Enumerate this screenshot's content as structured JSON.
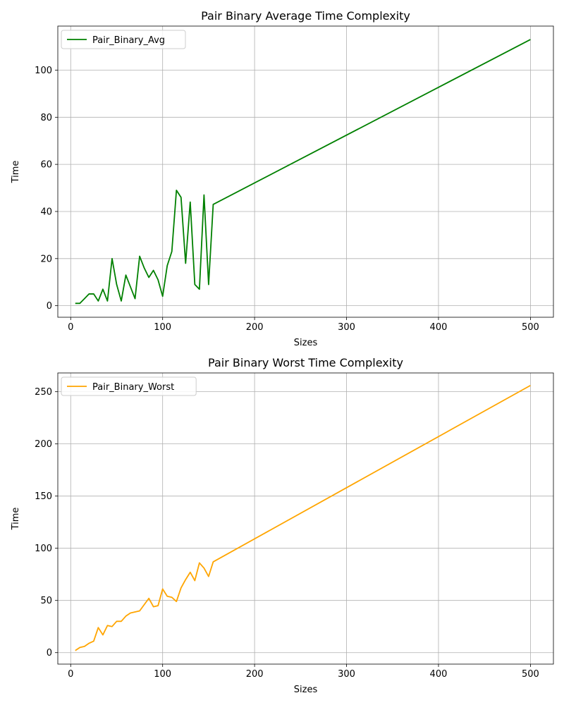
{
  "chart_data": [
    {
      "type": "line",
      "title": "Pair Binary Average Time Complexity",
      "xlabel": "Sizes",
      "ylabel": "Time",
      "xlim": [
        -14,
        525
      ],
      "ylim": [
        -4.9,
        118.7
      ],
      "xticks": [
        0,
        100,
        200,
        300,
        400,
        500
      ],
      "yticks": [
        0,
        20,
        40,
        60,
        80,
        100
      ],
      "grid": true,
      "legend_position": "top-left",
      "series": [
        {
          "name": "Pair_Binary_Avg",
          "color": "#008000",
          "x": [
            5,
            10,
            15,
            20,
            25,
            30,
            35,
            40,
            45,
            50,
            55,
            60,
            65,
            70,
            75,
            80,
            85,
            90,
            95,
            100,
            105,
            110,
            115,
            120,
            125,
            130,
            135,
            140,
            145,
            150,
            155,
            500
          ],
          "y": [
            1,
            1,
            3,
            5,
            5,
            2,
            7,
            2,
            20,
            9,
            2,
            13,
            8,
            3,
            21,
            16,
            12,
            15,
            11,
            4,
            17,
            23,
            49,
            46,
            18,
            44,
            9,
            7,
            47,
            9,
            43,
            113
          ]
        }
      ]
    },
    {
      "type": "line",
      "title": "Pair Binary Worst Time Complexity",
      "xlabel": "Sizes",
      "ylabel": "Time",
      "xlim": [
        -14,
        525
      ],
      "ylim": [
        -11,
        268
      ],
      "xticks": [
        0,
        100,
        200,
        300,
        400,
        500
      ],
      "yticks": [
        0,
        50,
        100,
        150,
        200,
        250
      ],
      "grid": true,
      "legend_position": "top-left",
      "series": [
        {
          "name": "Pair_Binary_Worst",
          "color": "#FFA500",
          "x": [
            5,
            10,
            15,
            20,
            25,
            30,
            35,
            40,
            45,
            50,
            55,
            60,
            65,
            70,
            75,
            80,
            85,
            90,
            95,
            100,
            105,
            110,
            115,
            120,
            125,
            130,
            135,
            140,
            145,
            150,
            155,
            500
          ],
          "y": [
            2,
            5,
            6,
            9,
            11,
            24,
            17,
            26,
            25,
            30,
            30,
            35,
            38,
            39,
            40,
            46,
            52,
            44,
            45,
            61,
            54,
            53,
            49,
            62,
            70,
            77,
            69,
            86,
            81,
            73,
            87,
            256
          ]
        }
      ]
    }
  ]
}
